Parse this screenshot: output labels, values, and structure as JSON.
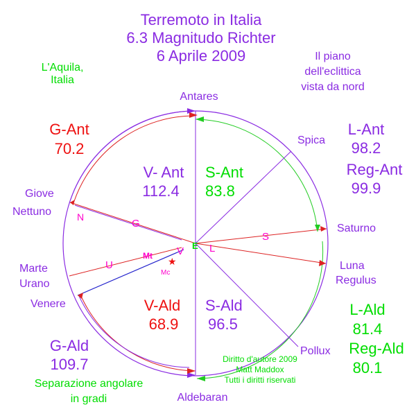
{
  "title": {
    "line1": "Terremoto in Italia",
    "line2": "6.3 Magnitudo Richter",
    "line3": "6 Aprile 2009"
  },
  "location": {
    "line1": "L'Aquila,",
    "line2": "Italia"
  },
  "plane_note": {
    "line1": "Il piano",
    "line2": "dell'eclittica",
    "line3": "vista da nord"
  },
  "stars": {
    "antares": "Antares",
    "spica": "Spica",
    "regulus": "Regulus",
    "pollux": "Pollux",
    "aldebaran": "Aldebaran"
  },
  "planets": {
    "giove": "Giove",
    "nettuno": "Nettuno",
    "marte": "Marte",
    "urano": "Urano",
    "venere": "Venere",
    "saturno": "Saturno",
    "luna": "Luna"
  },
  "markers": {
    "N": "N",
    "G": "G",
    "Mt": "Mt",
    "V": "V",
    "U": "U",
    "E": "E",
    "L": "L",
    "S": "S",
    "Mc": "Mc"
  },
  "angles": {
    "g_ant_label": "G-Ant",
    "g_ant_value": "70.2",
    "v_ant_label": "V- Ant",
    "v_ant_value": "112.4",
    "s_ant_label": "S-Ant",
    "s_ant_value": "83.8",
    "l_ant_label": "L-Ant",
    "l_ant_value": "98.2",
    "reg_ant_label": "Reg-Ant",
    "reg_ant_value": "99.9",
    "v_ald_label": "V-Ald",
    "v_ald_value": "68.9",
    "s_ald_label": "S-Ald",
    "s_ald_value": "96.5",
    "l_ald_label": "L-Ald",
    "l_ald_value": "81.4",
    "reg_ald_label": "Reg-Ald",
    "reg_ald_value": "80.1",
    "g_ald_label": "G-Ald",
    "g_ald_value": "109.7"
  },
  "copyright": {
    "line1": "Diritto d'autore 2009",
    "line2": "Matt Maddox",
    "line3": "Tutti i diritti riservati"
  },
  "footer": {
    "line1": "Separazione angolare",
    "line2": "in gradi"
  },
  "colors": {
    "purple": "#8a2be2",
    "green": "#00dd00",
    "red": "#ee1111",
    "blue": "#2222cc",
    "magenta": "#ff00cc"
  }
}
